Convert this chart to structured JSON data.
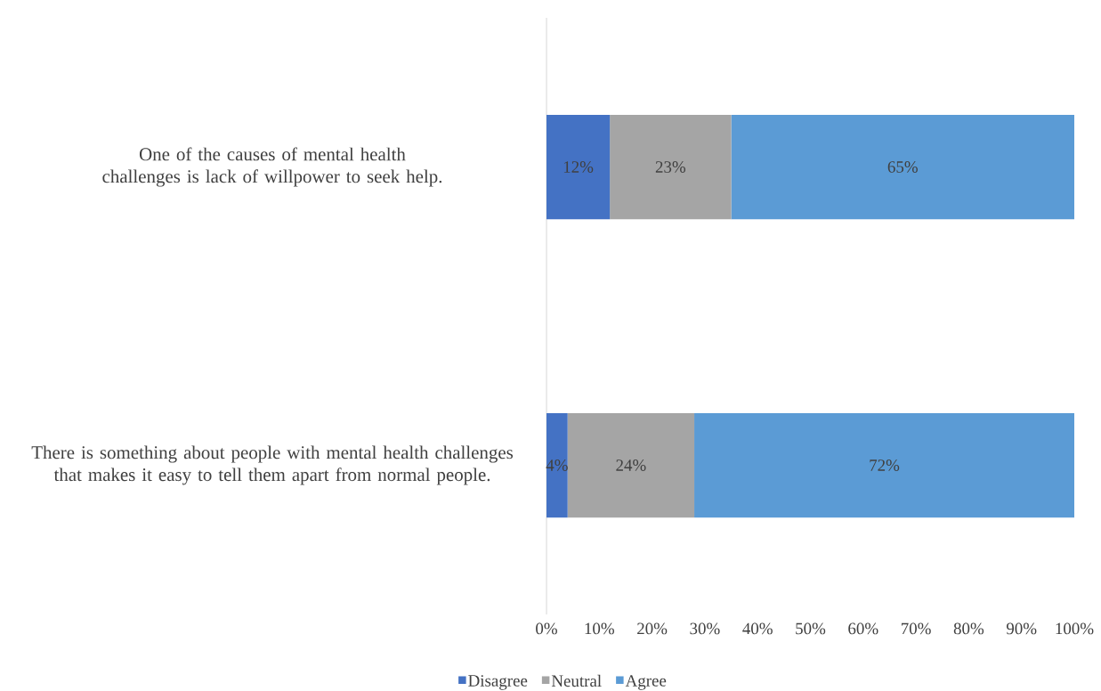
{
  "chart_data": {
    "type": "bar",
    "orientation": "horizontal",
    "stacked": true,
    "categories": [
      "One of the causes of mental health challenges is lack of willpower to seek help.",
      "There is something about people with mental health challenges that makes it easy to tell them apart from normal people."
    ],
    "series": [
      {
        "name": "Disagree",
        "color": "#4472c4",
        "values": [
          12,
          4
        ],
        "value_labels": [
          "12%",
          "4%"
        ]
      },
      {
        "name": "Neutral",
        "color": "#a5a5a5",
        "values": [
          23,
          24
        ],
        "value_labels": [
          "23%",
          "24%"
        ]
      },
      {
        "name": "Agree",
        "color": "#5b9bd5",
        "values": [
          65,
          72
        ],
        "value_labels": [
          "65%",
          "72%"
        ]
      }
    ],
    "xlim": [
      0,
      100
    ],
    "xticks": [
      {
        "value": 0,
        "label": "0%"
      },
      {
        "value": 10,
        "label": "10%"
      },
      {
        "value": 20,
        "label": "20%"
      },
      {
        "value": 30,
        "label": "30%"
      },
      {
        "value": 40,
        "label": "40%"
      },
      {
        "value": 50,
        "label": "50%"
      },
      {
        "value": 60,
        "label": "60%"
      },
      {
        "value": 70,
        "label": "70%"
      },
      {
        "value": 80,
        "label": "80%"
      },
      {
        "value": 90,
        "label": "90%"
      },
      {
        "value": 100,
        "label": "100%"
      }
    ],
    "legend": "bottom"
  }
}
